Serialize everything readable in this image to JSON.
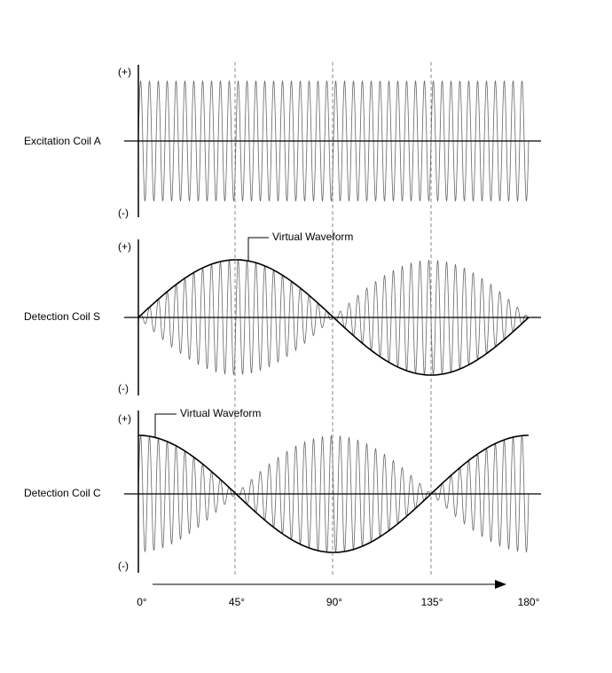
{
  "panels": [
    {
      "label": "Excitation Coil A",
      "plus": "(+)",
      "minus": "(-)"
    },
    {
      "label": "Detection Coil S",
      "plus": "(+)",
      "minus": "(-)",
      "annotation": "Virtual Waveform"
    },
    {
      "label": "Detection Coil C",
      "plus": "(+)",
      "minus": "(-)",
      "annotation": "Virtual Waveform"
    }
  ],
  "angle_axis": {
    "labels": [
      "0°",
      "45°",
      "90°",
      "135°",
      "180°"
    ]
  }
}
